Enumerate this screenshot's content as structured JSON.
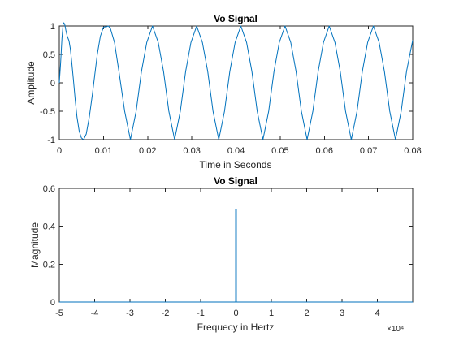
{
  "chart_data": [
    {
      "type": "line",
      "title": "Vo Signal",
      "xlabel": "Time in Seconds",
      "ylabel": "Amplitude",
      "xlim": [
        0,
        0.08
      ],
      "ylim": [
        -1,
        1
      ],
      "x_ticks": [
        0,
        0.01,
        0.02,
        0.03,
        0.04,
        0.05,
        0.06,
        0.07,
        0.08
      ],
      "y_ticks": [
        -1,
        -0.5,
        0,
        0.5,
        1
      ],
      "x_tick_labels": [
        "0",
        "0.01",
        "0.02",
        "0.03",
        "0.04",
        "0.05",
        "0.06",
        "0.07",
        "0.08"
      ],
      "y_tick_labels": [
        "-1",
        "-0.5",
        "0",
        "0.5",
        "1"
      ],
      "grid": false,
      "series": [
        {
          "x": [
            0,
            0.0003,
            0.0006,
            0.0009,
            0.0012,
            0.0015,
            0.0018,
            0.002,
            0.0022,
            0.0025,
            0.0028,
            0.0032,
            0.0036,
            0.004,
            0.0045,
            0.005,
            0.0055,
            0.0061,
            0.0068,
            0.0075,
            0.008,
            0.0086,
            0.0093,
            0.01,
            0.0108,
            0.0111,
            0.0116,
            0.0125,
            0.0135,
            0.0148,
            0.0161,
            0.0174,
            0.0186,
            0.0198,
            0.0211,
            0.0224,
            0.0236,
            0.0248,
            0.0261,
            0.0274,
            0.0286,
            0.0298,
            0.0311,
            0.0324,
            0.0336,
            0.0348,
            0.0361,
            0.0374,
            0.0386,
            0.0398,
            0.0411,
            0.0424,
            0.0436,
            0.0448,
            0.0461,
            0.0474,
            0.0486,
            0.0498,
            0.0511,
            0.0524,
            0.0536,
            0.0548,
            0.0561,
            0.0574,
            0.0586,
            0.0598,
            0.0611,
            0.0624,
            0.0636,
            0.0648,
            0.0661,
            0.0674,
            0.0686,
            0.0698,
            0.0711,
            0.0724,
            0.0736,
            0.0748,
            0.0761,
            0.0774,
            0.0786,
            0.08
          ],
          "y": [
            0,
            0.35,
            0.78,
            1.06,
            1.04,
            0.92,
            0.82,
            0.78,
            0.74,
            0.6,
            0.38,
            0.05,
            -0.3,
            -0.6,
            -0.85,
            -0.97,
            -1,
            -0.9,
            -0.6,
            -0.2,
            0.12,
            0.5,
            0.82,
            0.98,
            0.99,
            1,
            0.95,
            0.71,
            0.2,
            -0.5,
            -1,
            -0.5,
            0.2,
            0.71,
            1,
            0.71,
            0.2,
            -0.5,
            -1,
            -0.5,
            0.2,
            0.71,
            1,
            0.71,
            0.2,
            -0.5,
            -1,
            -0.5,
            0.2,
            0.71,
            1,
            0.71,
            0.2,
            -0.5,
            -1,
            -0.5,
            0.2,
            0.71,
            1,
            0.71,
            0.2,
            -0.5,
            -1,
            -0.5,
            0.2,
            0.71,
            1,
            0.71,
            0.2,
            -0.5,
            -1,
            -0.5,
            0.2,
            0.71,
            1,
            0.71,
            0.2,
            -0.5,
            -1,
            -0.5,
            0.2,
            0.75
          ]
        }
      ],
      "color": "#0072bd"
    },
    {
      "type": "line",
      "title": "Vo Signal",
      "xlabel": "Frequecy in Hertz",
      "ylabel": "Magnitude",
      "xlim": [
        -50000,
        50000
      ],
      "ylim": [
        0,
        0.6
      ],
      "x_ticks": [
        -50000,
        -40000,
        -30000,
        -20000,
        -10000,
        0,
        10000,
        20000,
        30000,
        40000
      ],
      "y_ticks": [
        0,
        0.2,
        0.4,
        0.6
      ],
      "x_tick_labels": [
        "-5",
        "-4",
        "-3",
        "-2",
        "-1",
        "0",
        "1",
        "2",
        "3",
        "4"
      ],
      "y_tick_labels": [
        "0",
        "0.2",
        "0.4",
        "0.6"
      ],
      "x_exponent_label": "×10⁴",
      "grid": false,
      "series": [
        {
          "x": [
            -50000,
            -200,
            -100,
            -100,
            0,
            100,
            100,
            200,
            50000
          ],
          "y": [
            0,
            0,
            0,
            0.49,
            0.01,
            0.49,
            0,
            0,
            0
          ]
        }
      ],
      "color": "#0072bd"
    }
  ]
}
